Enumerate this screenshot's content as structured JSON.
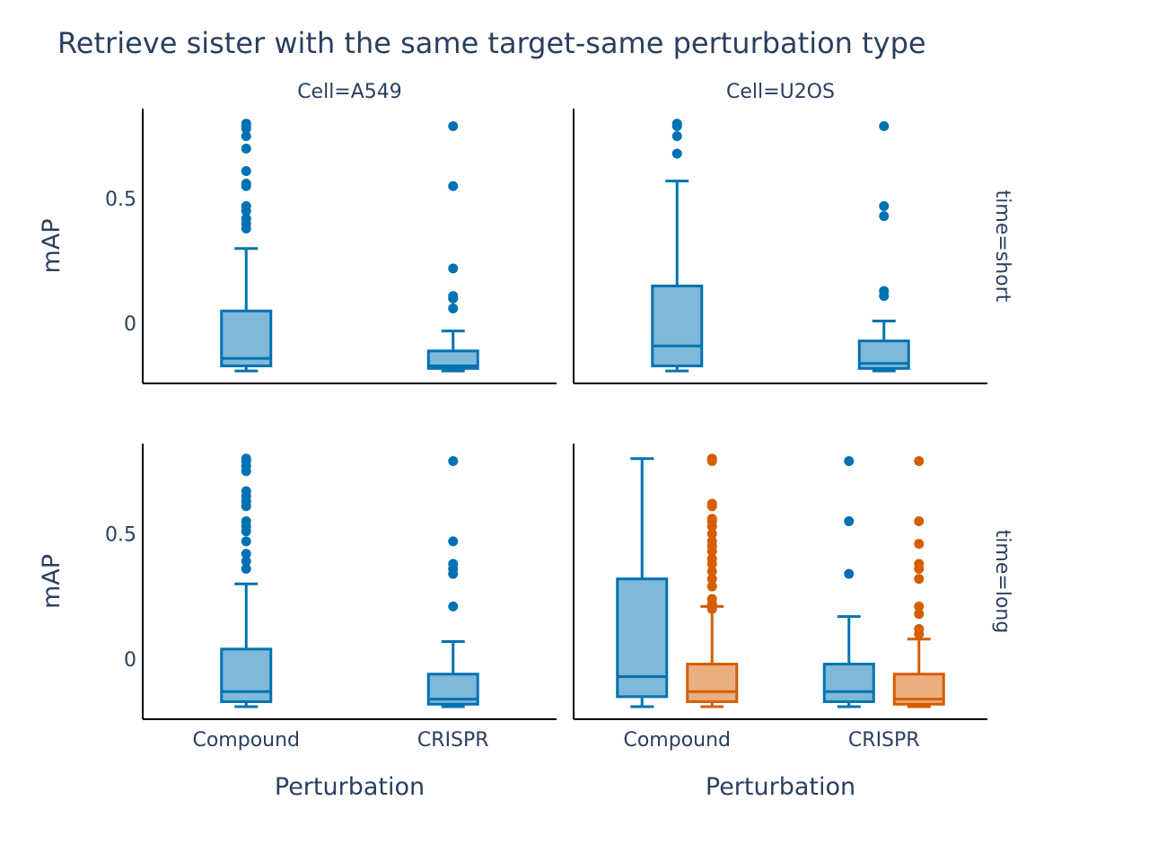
{
  "chart_data": {
    "type": "box",
    "title": "Retrieve sister with the same target-same perturbation type",
    "xlabel": "Perturbation",
    "ylabel": "mAP",
    "col_facets": [
      "Cell=A549",
      "Cell=U2OS"
    ],
    "row_facets": [
      "time=short",
      "time=long"
    ],
    "categories": [
      "Compound",
      "CRISPR"
    ],
    "yticks": [
      0,
      0.5
    ],
    "ylim": [
      -0.24,
      0.86
    ],
    "grid": false,
    "legend": "none",
    "colors": {
      "series_a": "#0072b2",
      "series_b": "#d55e00",
      "text": "#2a3f5f"
    },
    "panels": [
      {
        "col": "Cell=A549",
        "row": "time=short",
        "boxes": [
          {
            "category": "Compound",
            "series": 0,
            "whisker_low": -0.19,
            "q1": -0.17,
            "median": -0.14,
            "q3": 0.05,
            "whisker_high": 0.3,
            "outliers": [
              0.8,
              0.79,
              0.78,
              0.75,
              0.7,
              0.61,
              0.56,
              0.55,
              0.47,
              0.45,
              0.42,
              0.4,
              0.38
            ]
          },
          {
            "category": "CRISPR",
            "series": 0,
            "whisker_low": -0.19,
            "q1": -0.18,
            "median": -0.17,
            "q3": -0.11,
            "whisker_high": -0.03,
            "outliers": [
              0.79,
              0.55,
              0.22,
              0.11,
              0.1,
              0.06
            ]
          }
        ]
      },
      {
        "col": "Cell=U2OS",
        "row": "time=short",
        "boxes": [
          {
            "category": "Compound",
            "series": 0,
            "whisker_low": -0.19,
            "q1": -0.17,
            "median": -0.09,
            "q3": 0.15,
            "whisker_high": 0.57,
            "outliers": [
              0.8,
              0.79,
              0.75,
              0.68
            ]
          },
          {
            "category": "CRISPR",
            "series": 0,
            "whisker_low": -0.19,
            "q1": -0.18,
            "median": -0.16,
            "q3": -0.07,
            "whisker_high": 0.01,
            "outliers": [
              0.79,
              0.47,
              0.43,
              0.13,
              0.11
            ]
          }
        ]
      },
      {
        "col": "Cell=A549",
        "row": "time=long",
        "boxes": [
          {
            "category": "Compound",
            "series": 0,
            "whisker_low": -0.19,
            "q1": -0.17,
            "median": -0.13,
            "q3": 0.04,
            "whisker_high": 0.3,
            "outliers": [
              0.8,
              0.79,
              0.77,
              0.75,
              0.67,
              0.65,
              0.63,
              0.61,
              0.55,
              0.53,
              0.51,
              0.47,
              0.42,
              0.39,
              0.36
            ]
          },
          {
            "category": "CRISPR",
            "series": 0,
            "whisker_low": -0.19,
            "q1": -0.18,
            "median": -0.16,
            "q3": -0.06,
            "whisker_high": 0.07,
            "outliers": [
              0.79,
              0.47,
              0.38,
              0.36,
              0.34,
              0.21
            ]
          }
        ]
      },
      {
        "col": "Cell=U2OS",
        "row": "time=long",
        "boxes": [
          {
            "category": "Compound",
            "series": 0,
            "whisker_low": -0.19,
            "q1": -0.15,
            "median": -0.07,
            "q3": 0.32,
            "whisker_high": 0.8,
            "outliers": []
          },
          {
            "category": "Compound",
            "series": 1,
            "whisker_low": -0.19,
            "q1": -0.17,
            "median": -0.13,
            "q3": -0.02,
            "whisker_high": 0.21,
            "outliers": [
              0.8,
              0.79,
              0.62,
              0.61,
              0.56,
              0.55,
              0.53,
              0.5,
              0.47,
              0.45,
              0.43,
              0.4,
              0.38,
              0.35,
              0.32,
              0.29,
              0.24,
              0.22,
              0.2
            ]
          },
          {
            "category": "CRISPR",
            "series": 0,
            "whisker_low": -0.19,
            "q1": -0.17,
            "median": -0.13,
            "q3": -0.02,
            "whisker_high": 0.17,
            "outliers": [
              0.79,
              0.55,
              0.34
            ]
          },
          {
            "category": "CRISPR",
            "series": 1,
            "whisker_low": -0.19,
            "q1": -0.18,
            "median": -0.16,
            "q3": -0.06,
            "whisker_high": 0.08,
            "outliers": [
              0.79,
              0.55,
              0.46,
              0.38,
              0.36,
              0.32,
              0.21,
              0.18,
              0.12,
              0.1
            ]
          }
        ]
      }
    ]
  }
}
